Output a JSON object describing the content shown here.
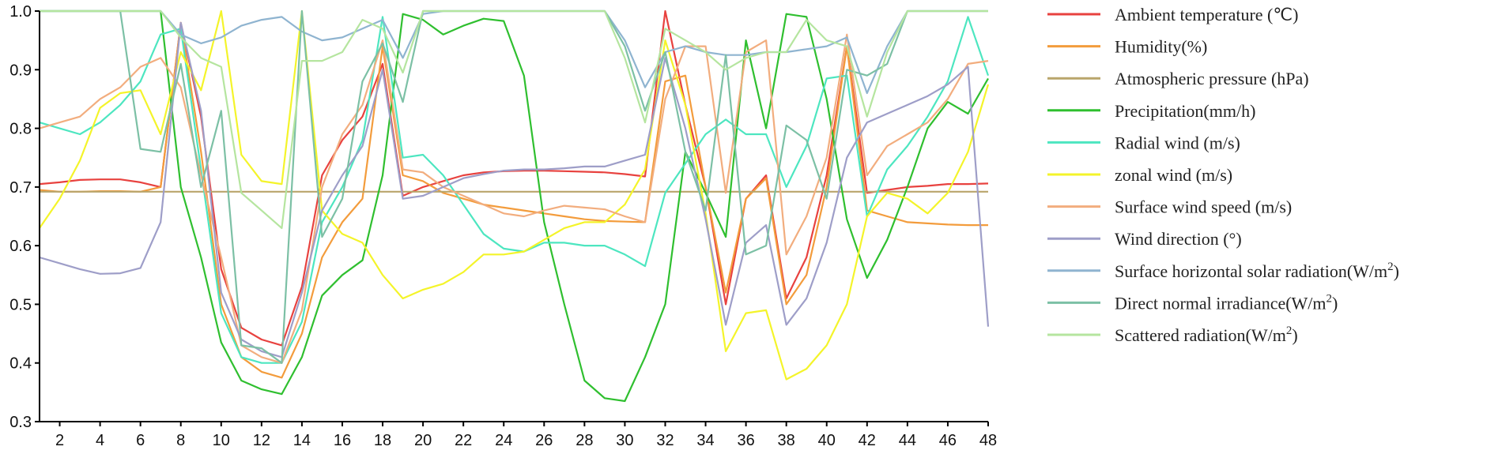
{
  "chart_data": {
    "type": "line",
    "title": "",
    "xlabel": "",
    "ylabel": "",
    "x": [
      1,
      2,
      3,
      4,
      5,
      6,
      7,
      8,
      9,
      10,
      11,
      12,
      13,
      14,
      15,
      16,
      17,
      18,
      19,
      20,
      21,
      22,
      23,
      24,
      25,
      26,
      27,
      28,
      29,
      30,
      31,
      32,
      33,
      34,
      35,
      36,
      37,
      38,
      39,
      40,
      41,
      42,
      43,
      44,
      45,
      46,
      47,
      48
    ],
    "xticks": [
      "2",
      "4",
      "6",
      "8",
      "10",
      "12",
      "14",
      "16",
      "18",
      "20",
      "22",
      "24",
      "26",
      "28",
      "30",
      "32",
      "34",
      "36",
      "38",
      "40",
      "42",
      "44",
      "46",
      "48"
    ],
    "xlim": [
      1,
      48
    ],
    "ylim": [
      0.3,
      1.0
    ],
    "yticks": [
      "0.3",
      "0.4",
      "0.5",
      "0.6",
      "0.7",
      "0.8",
      "0.9",
      "1.0"
    ],
    "grid": false,
    "legend_position": "right",
    "series": [
      {
        "name": "Ambient temperature (℃)",
        "color": "#e8423f",
        "values": [
          0.705,
          0.708,
          0.712,
          0.713,
          0.713,
          0.708,
          0.7,
          0.98,
          0.82,
          0.56,
          0.46,
          0.44,
          0.43,
          0.53,
          0.72,
          0.78,
          0.82,
          0.91,
          0.685,
          0.7,
          0.71,
          0.72,
          0.725,
          0.727,
          0.728,
          0.728,
          0.727,
          0.726,
          0.725,
          0.722,
          0.718,
          1.0,
          0.84,
          0.7,
          0.5,
          0.68,
          0.72,
          0.51,
          0.58,
          0.72,
          0.94,
          0.69,
          0.695,
          0.7,
          0.702,
          0.705,
          0.705,
          0.706
        ]
      },
      {
        "name": "Humidity(%)",
        "color": "#f39c3c",
        "values": [
          0.695,
          0.692,
          0.692,
          0.693,
          0.693,
          0.692,
          0.7,
          0.98,
          0.76,
          0.5,
          0.41,
          0.385,
          0.375,
          0.45,
          0.58,
          0.64,
          0.68,
          0.94,
          0.72,
          0.71,
          0.69,
          0.68,
          0.67,
          0.665,
          0.66,
          0.655,
          0.65,
          0.645,
          0.642,
          0.641,
          0.64,
          0.88,
          0.89,
          0.7,
          0.52,
          0.68,
          0.715,
          0.5,
          0.55,
          0.7,
          0.94,
          0.66,
          0.65,
          0.64,
          0.638,
          0.636,
          0.635,
          0.635
        ]
      },
      {
        "name": "Atmospheric pressure (hPa)",
        "color": "#b9a56b",
        "values": [
          0.692,
          0.692,
          0.692,
          0.692,
          0.692,
          0.692,
          0.692,
          0.692,
          0.692,
          0.692,
          0.692,
          0.692,
          0.692,
          0.692,
          0.692,
          0.692,
          0.692,
          0.692,
          0.692,
          0.692,
          0.692,
          0.692,
          0.692,
          0.692,
          0.692,
          0.692,
          0.692,
          0.692,
          0.692,
          0.692,
          0.692,
          0.692,
          0.692,
          0.692,
          0.692,
          0.692,
          0.692,
          0.692,
          0.692,
          0.692,
          0.692,
          0.692,
          0.692,
          0.692,
          0.692,
          0.692,
          0.692,
          0.692
        ]
      },
      {
        "name": "Precipitation(mm/h)",
        "color": "#2fbf2f",
        "values": [
          1.0,
          1.0,
          1.0,
          1.0,
          1.0,
          1.0,
          1.0,
          0.7,
          0.58,
          0.435,
          0.37,
          0.355,
          0.347,
          0.41,
          0.515,
          0.55,
          0.575,
          0.72,
          0.995,
          0.985,
          0.96,
          0.975,
          0.987,
          0.983,
          0.89,
          0.64,
          0.5,
          0.37,
          0.34,
          0.335,
          0.41,
          0.5,
          0.76,
          0.69,
          0.615,
          0.95,
          0.8,
          0.995,
          0.99,
          0.85,
          0.645,
          0.545,
          0.61,
          0.7,
          0.8,
          0.845,
          0.825,
          0.885
        ]
      },
      {
        "name": "Radial wind (m/s)",
        "color": "#4de6c0",
        "values": [
          0.81,
          0.8,
          0.79,
          0.81,
          0.84,
          0.88,
          0.96,
          0.97,
          0.73,
          0.485,
          0.41,
          0.4,
          0.4,
          0.47,
          0.64,
          0.7,
          0.78,
          0.99,
          0.75,
          0.755,
          0.72,
          0.67,
          0.62,
          0.595,
          0.59,
          0.605,
          0.605,
          0.6,
          0.6,
          0.585,
          0.565,
          0.69,
          0.74,
          0.79,
          0.815,
          0.79,
          0.79,
          0.7,
          0.77,
          0.885,
          0.89,
          0.65,
          0.73,
          0.77,
          0.82,
          0.88,
          0.99,
          0.89
        ]
      },
      {
        "name": "zonal wind (m/s)",
        "color": "#f4f42a",
        "values": [
          0.63,
          0.68,
          0.745,
          0.835,
          0.86,
          0.865,
          0.79,
          0.93,
          0.865,
          1.0,
          0.755,
          0.71,
          0.705,
          1.0,
          0.66,
          0.62,
          0.605,
          0.55,
          0.51,
          0.525,
          0.535,
          0.555,
          0.585,
          0.585,
          0.59,
          0.61,
          0.63,
          0.64,
          0.64,
          0.67,
          0.73,
          0.95,
          0.84,
          0.655,
          0.42,
          0.485,
          0.49,
          0.372,
          0.39,
          0.43,
          0.5,
          0.65,
          0.69,
          0.68,
          0.655,
          0.69,
          0.76,
          0.875
        ]
      },
      {
        "name": "Surface wind speed (m/s)",
        "color": "#f2ad7e",
        "values": [
          0.8,
          0.81,
          0.82,
          0.85,
          0.87,
          0.905,
          0.92,
          0.87,
          0.72,
          0.58,
          0.43,
          0.41,
          0.4,
          0.49,
          0.7,
          0.79,
          0.84,
          0.95,
          0.73,
          0.725,
          0.7,
          0.685,
          0.67,
          0.655,
          0.65,
          0.66,
          0.668,
          0.665,
          0.662,
          0.65,
          0.64,
          0.85,
          0.94,
          0.94,
          0.69,
          0.93,
          0.95,
          0.585,
          0.65,
          0.75,
          0.96,
          0.72,
          0.77,
          0.79,
          0.81,
          0.85,
          0.91,
          0.915
        ]
      },
      {
        "name": "Wind direction (°)",
        "color": "#9e9ec8",
        "values": [
          0.58,
          0.57,
          0.56,
          0.552,
          0.553,
          0.562,
          0.64,
          0.98,
          0.83,
          0.52,
          0.44,
          0.42,
          0.41,
          0.52,
          0.66,
          0.72,
          0.77,
          0.9,
          0.68,
          0.685,
          0.7,
          0.715,
          0.722,
          0.728,
          0.73,
          0.73,
          0.732,
          0.735,
          0.735,
          0.745,
          0.755,
          0.92,
          0.8,
          0.645,
          0.465,
          0.605,
          0.635,
          0.465,
          0.51,
          0.605,
          0.75,
          0.81,
          0.825,
          0.84,
          0.855,
          0.875,
          0.905,
          0.462
        ]
      },
      {
        "name": "Surface horizontal solar radiation(W/m",
        "sup": "2",
        "close": ")",
        "color": "#8fb4d0",
        "values": [
          1.0,
          1.0,
          1.0,
          1.0,
          1.0,
          1.0,
          1.0,
          0.96,
          0.945,
          0.955,
          0.975,
          0.985,
          0.99,
          0.965,
          0.95,
          0.955,
          0.97,
          0.985,
          0.92,
          0.995,
          1.0,
          1.0,
          1.0,
          1.0,
          1.0,
          1.0,
          1.0,
          1.0,
          1.0,
          0.95,
          0.87,
          0.93,
          0.94,
          0.93,
          0.925,
          0.925,
          0.93,
          0.93,
          0.935,
          0.94,
          0.955,
          0.86,
          0.94,
          1.0,
          1.0,
          1.0,
          1.0,
          1.0
        ]
      },
      {
        "name": "Direct normal irradiance(W/m",
        "sup": "2",
        "close": ")",
        "color": "#7cc0a5",
        "values": [
          1.0,
          1.0,
          1.0,
          1.0,
          1.0,
          0.765,
          0.76,
          0.91,
          0.7,
          0.83,
          0.43,
          0.425,
          0.4,
          1.0,
          0.615,
          0.68,
          0.88,
          0.945,
          0.845,
          1.0,
          1.0,
          1.0,
          1.0,
          1.0,
          1.0,
          1.0,
          1.0,
          1.0,
          1.0,
          0.94,
          0.83,
          0.93,
          0.76,
          0.66,
          0.925,
          0.585,
          0.6,
          0.805,
          0.78,
          0.68,
          0.9,
          0.89,
          0.91,
          1.0,
          1.0,
          1.0,
          1.0,
          1.0
        ]
      },
      {
        "name": "Scattered radiation(W/m",
        "sup": "2",
        "close": ")",
        "color": "#b5e59f",
        "values": [
          1.0,
          1.0,
          1.0,
          1.0,
          1.0,
          1.0,
          1.0,
          0.955,
          0.92,
          0.905,
          0.69,
          0.66,
          0.63,
          0.915,
          0.915,
          0.93,
          0.985,
          0.97,
          0.895,
          1.0,
          1.0,
          1.0,
          1.0,
          1.0,
          1.0,
          1.0,
          1.0,
          1.0,
          1.0,
          0.92,
          0.81,
          0.97,
          0.95,
          0.93,
          0.9,
          0.92,
          0.93,
          0.93,
          0.985,
          0.95,
          0.94,
          0.82,
          0.93,
          1.0,
          1.0,
          1.0,
          1.0,
          1.0
        ]
      }
    ]
  }
}
